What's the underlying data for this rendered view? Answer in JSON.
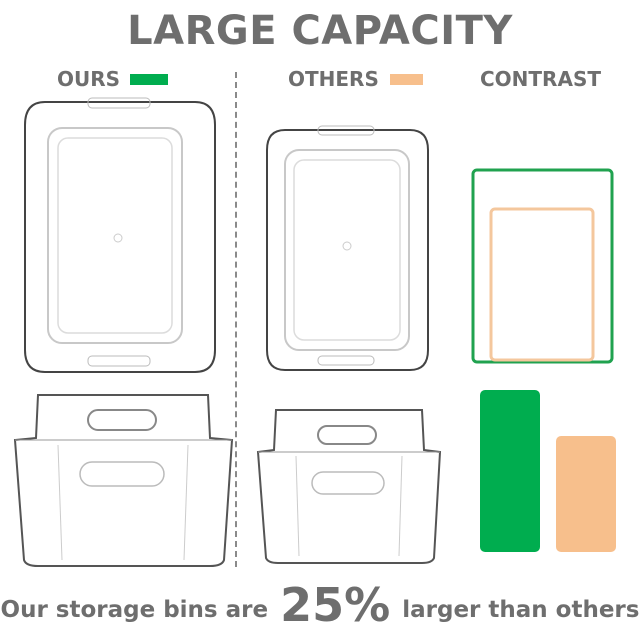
{
  "title": "LARGE CAPACITY",
  "labels": {
    "ours": "OURS",
    "others": "OTHERS",
    "contrast": "CONTRAST"
  },
  "colors": {
    "ours": "#00ad4f",
    "others": "#f7bf8c",
    "text": "#6e6e6e"
  },
  "tagline": {
    "before": "Our storage bins are",
    "highlight": "25%",
    "after": "larger than others"
  }
}
